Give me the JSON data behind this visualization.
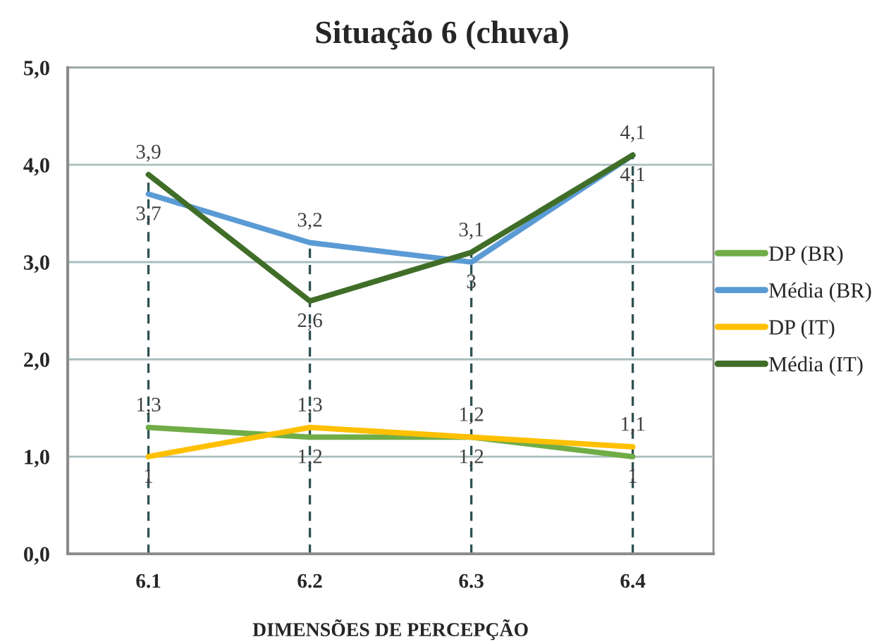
{
  "chart_data": {
    "type": "line",
    "title": "Situação 6 (chuva)",
    "xlabel": "DIMENSÕES DE PERCEPÇÃO",
    "categories": [
      "6.1",
      "6.2",
      "6.3",
      "6.4"
    ],
    "series": [
      {
        "name": "DP (BR)",
        "color": "#70ad47",
        "values": [
          1.3,
          1.2,
          1.2,
          1
        ],
        "value_labels": [
          "1,3",
          "1,2",
          "1,2",
          "1"
        ]
      },
      {
        "name": "Média (BR)",
        "color": "#5b9bd5",
        "values": [
          3.7,
          3.2,
          3,
          4.1
        ],
        "value_labels": [
          "3,7",
          "3,2",
          "3",
          "4,1"
        ]
      },
      {
        "name": "DP (IT)",
        "color": "#ffc000",
        "values": [
          1,
          1.3,
          1.2,
          1.1
        ],
        "value_labels": [
          "1",
          "1,3",
          "1,2",
          "1,1"
        ]
      },
      {
        "name": "Média (IT)",
        "color": "#406e28",
        "values": [
          3.9,
          2.6,
          3.1,
          4.1
        ],
        "value_labels": [
          "3,9",
          "2,6",
          "3,1",
          "4,1"
        ]
      }
    ],
    "ylim": [
      0,
      5
    ],
    "yticks": [
      {
        "value": 0,
        "label": "0,0"
      },
      {
        "value": 1,
        "label": "1,0"
      },
      {
        "value": 2,
        "label": "2,0"
      },
      {
        "value": 3,
        "label": "3,0"
      },
      {
        "value": 4,
        "label": "4,0"
      },
      {
        "value": 5,
        "label": "5,0"
      }
    ],
    "grid": "y",
    "legend": "right",
    "ref_lines": [
      {
        "axis": "x",
        "value": "6.1",
        "line_style": "dashed",
        "color": "#2f5252"
      },
      {
        "axis": "x",
        "value": "6.2",
        "line_style": "dashed",
        "color": "#2f5252"
      },
      {
        "axis": "x",
        "value": "6.3",
        "line_style": "dashed",
        "color": "#2f5252"
      },
      {
        "axis": "x",
        "value": "6.4",
        "line_style": "dashed",
        "color": "#2f5252"
      }
    ]
  }
}
